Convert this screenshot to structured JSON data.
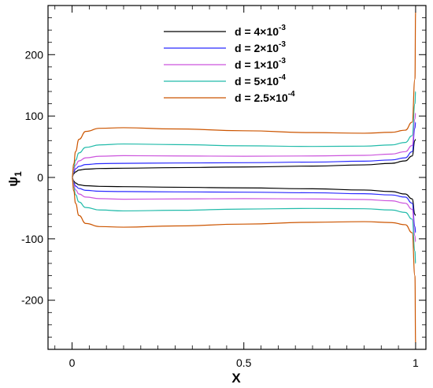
{
  "chart_data": {
    "type": "line",
    "title": "",
    "xlabel": "X",
    "ylabel": "ψ",
    "ylabel_sub": "1",
    "xlim": [
      -0.07,
      1.03
    ],
    "ylim": [
      -280,
      280
    ],
    "xticks": [
      0,
      0.5,
      1
    ],
    "xtick_labels": [
      "0",
      "0.5",
      "1"
    ],
    "yticks": [
      -200,
      -100,
      0,
      100,
      200
    ],
    "ytick_labels": [
      "-200",
      "-100",
      "0",
      "100",
      "200"
    ],
    "grid": false,
    "legend_position": "top-center",
    "series": [
      {
        "name": "d = 4×10",
        "exponent": "-3",
        "color": "#000000",
        "x": [
          0,
          0.005,
          0.01,
          0.02,
          0.04,
          0.08,
          0.15,
          0.3,
          0.5,
          0.7,
          0.85,
          0.93,
          0.97,
          0.99,
          0.998,
          1.0
        ],
        "y_upper": [
          0,
          6,
          9,
          12,
          13.5,
          14.5,
          15,
          16,
          17,
          18.5,
          20.5,
          23,
          27,
          35,
          60,
          62
        ],
        "y_lower": [
          0,
          -6,
          -9,
          -12,
          -13.5,
          -14.5,
          -15,
          -16,
          -17,
          -18.5,
          -20.5,
          -23,
          -27,
          -35,
          -60,
          -62
        ]
      },
      {
        "name": "d = 2×10",
        "exponent": "-3",
        "color": "#2a2aff",
        "x": [
          0,
          0.005,
          0.01,
          0.02,
          0.04,
          0.08,
          0.15,
          0.3,
          0.5,
          0.7,
          0.85,
          0.93,
          0.97,
          0.99,
          0.998,
          1.0
        ],
        "y_upper": [
          0,
          9,
          14,
          18,
          21,
          22.5,
          23,
          23.5,
          24,
          25,
          26.5,
          28.5,
          32,
          42,
          80,
          90
        ],
        "y_lower": [
          0,
          -9,
          -14,
          -18,
          -21,
          -22.5,
          -23,
          -23.5,
          -24,
          -25,
          -26.5,
          -28.5,
          -32,
          -42,
          -80,
          -90
        ]
      },
      {
        "name": "d = 1×10",
        "exponent": "-3",
        "color": "#cc55dd",
        "x": [
          0,
          0.005,
          0.01,
          0.02,
          0.04,
          0.08,
          0.15,
          0.3,
          0.5,
          0.7,
          0.85,
          0.93,
          0.97,
          0.99,
          0.998,
          1.0
        ],
        "y_upper": [
          0,
          12,
          20,
          27,
          32,
          34.5,
          35.5,
          35,
          34.5,
          35,
          36,
          38,
          42,
          52,
          95,
          105
        ],
        "y_lower": [
          0,
          -12,
          -20,
          -27,
          -32,
          -34.5,
          -35.5,
          -35,
          -34.5,
          -35,
          -36,
          -38,
          -42,
          -52,
          -95,
          -105
        ]
      },
      {
        "name": "d = 5×10",
        "exponent": "-4",
        "color": "#22bbaa",
        "x": [
          0,
          0.005,
          0.01,
          0.02,
          0.04,
          0.08,
          0.15,
          0.3,
          0.5,
          0.7,
          0.85,
          0.93,
          0.97,
          0.99,
          0.998,
          1.0
        ],
        "y_upper": [
          0,
          16,
          28,
          40,
          49,
          53,
          54.5,
          53.5,
          51.5,
          50.5,
          51,
          53,
          57,
          68,
          120,
          140
        ],
        "y_lower": [
          0,
          -16,
          -28,
          -40,
          -49,
          -53,
          -54.5,
          -53.5,
          -51.5,
          -50.5,
          -51,
          -53,
          -57,
          -68,
          -120,
          -140
        ]
      },
      {
        "name": "d = 2.5×10",
        "exponent": "-4",
        "color": "#cc5500",
        "x": [
          0,
          0.005,
          0.01,
          0.02,
          0.04,
          0.08,
          0.15,
          0.3,
          0.5,
          0.7,
          0.85,
          0.93,
          0.97,
          0.99,
          0.998,
          1.0
        ],
        "y_upper": [
          0,
          22,
          42,
          62,
          75,
          80,
          81,
          79,
          76,
          73,
          72,
          73.5,
          77,
          90,
          160,
          270
        ],
        "y_lower": [
          0,
          -22,
          -42,
          -62,
          -75,
          -80,
          -81,
          -79,
          -76,
          -73,
          -72,
          -73.5,
          -77,
          -90,
          -160,
          -270
        ]
      }
    ]
  }
}
